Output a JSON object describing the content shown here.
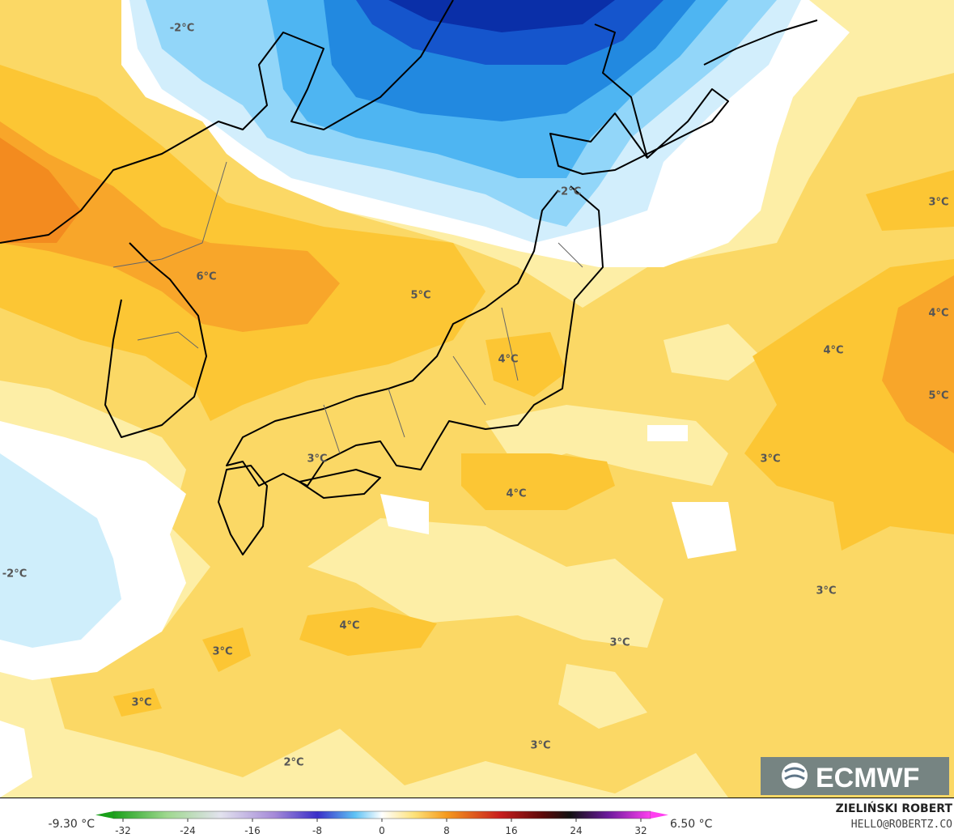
{
  "map_labels": [
    "-2°C",
    "-2°C",
    "3°C",
    "6°C",
    "5°C",
    "4°C",
    "4°C",
    "4°C",
    "5°C",
    "3°C",
    "3°C",
    "4°C",
    "-2°C",
    "3°C",
    "4°C",
    "3°C",
    "3°C",
    "3°C",
    "3°C",
    "2°C"
  ],
  "colorbar": {
    "min_label": "-9.30 °C",
    "max_label": "6.50 °C",
    "ticks": [
      -32,
      -24,
      -16,
      -8,
      0,
      8,
      16,
      24,
      32
    ]
  },
  "logo": "ECMWF",
  "credit": {
    "name": "ZIELIŃSKI ROBERT",
    "contact": "HELLO@ROBERTZ.CO"
  }
}
